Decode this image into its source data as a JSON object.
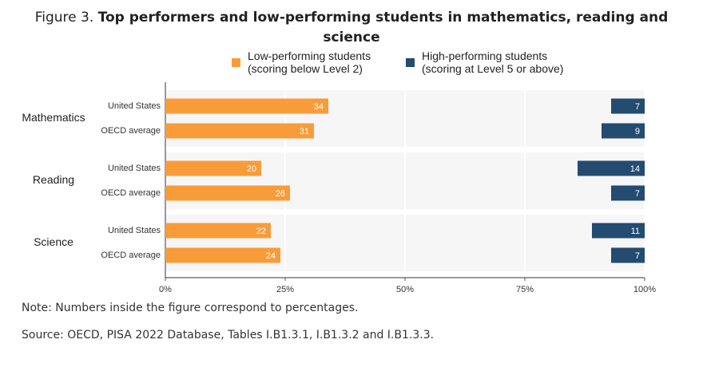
{
  "chart_data": {
    "type": "bar",
    "orientation": "horizontal",
    "figure_label": "Figure 3.",
    "title": "Top performers and low-performing students in mathematics, reading and science",
    "category_groups": [
      "Mathematics",
      "Reading",
      "Science"
    ],
    "categories": [
      "United States",
      "OECD average",
      "United States",
      "OECD average",
      "United States",
      "OECD average"
    ],
    "series": [
      {
        "name": "Low-performing students\n(scoring below Level 2)",
        "color": "#f89c3a",
        "anchor": "left",
        "values": [
          34,
          31,
          20,
          26,
          22,
          24
        ]
      },
      {
        "name": "High-performing students\n(scoring at Level 5 or above)",
        "color": "#244b70",
        "anchor": "right",
        "values": [
          7,
          9,
          14,
          7,
          11,
          7
        ]
      }
    ],
    "xlim": [
      0,
      100
    ],
    "xticks": [
      {
        "value": 0,
        "label": "0%"
      },
      {
        "value": 25,
        "label": "25%"
      },
      {
        "value": 50,
        "label": "50%"
      },
      {
        "value": 75,
        "label": "75%"
      },
      {
        "value": 100,
        "label": "100%"
      }
    ],
    "grid": true,
    "legend": "top",
    "note": "Note: Numbers inside the figure correspond to percentages.",
    "source": "Source: OECD, PISA 2022 Database, Tables I.B1.3.1, I.B1.3.2 and I.B1.3.3."
  }
}
